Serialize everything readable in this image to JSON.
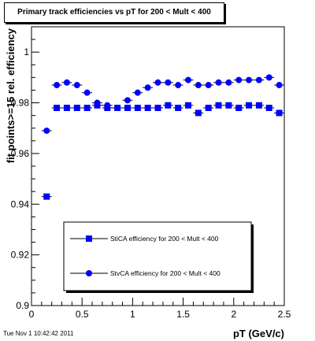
{
  "chart_data": {
    "type": "scatter",
    "title": "Primary track efficiencies vs pT for 200 < Mult < 400",
    "xlabel": "pT (GeV/c)",
    "ylabel": "fit points>=15 rel. efficiency",
    "xlim": [
      0,
      2.5
    ],
    "ylim": [
      0.9,
      1.01
    ],
    "x_ticks": [
      "0",
      "0.5",
      "1",
      "1.5",
      "2",
      "2.5"
    ],
    "y_ticks": [
      "0.9",
      "0.92",
      "0.94",
      "0.96",
      "0.98",
      "1"
    ],
    "legend_position": "bottom-center",
    "series": [
      {
        "name": "StiCA efficiency  for 200 < Mult < 400",
        "marker": "square",
        "color": "#0000ff",
        "x": [
          0.15,
          0.25,
          0.35,
          0.45,
          0.55,
          0.65,
          0.75,
          0.85,
          0.95,
          1.05,
          1.15,
          1.25,
          1.35,
          1.45,
          1.55,
          1.65,
          1.75,
          1.85,
          1.95,
          2.05,
          2.15,
          2.25,
          2.35,
          2.45
        ],
        "y": [
          0.943,
          0.978,
          0.978,
          0.978,
          0.978,
          0.979,
          0.978,
          0.978,
          0.978,
          0.978,
          0.978,
          0.978,
          0.979,
          0.978,
          0.979,
          0.976,
          0.978,
          0.979,
          0.979,
          0.978,
          0.979,
          0.979,
          0.978,
          0.976
        ]
      },
      {
        "name": "StvCA efficiency  for 200 < Mult < 400",
        "marker": "circle",
        "color": "#0000ff",
        "x": [
          0.15,
          0.25,
          0.35,
          0.45,
          0.55,
          0.65,
          0.75,
          0.85,
          0.95,
          1.05,
          1.15,
          1.25,
          1.35,
          1.45,
          1.55,
          1.65,
          1.75,
          1.85,
          1.95,
          2.05,
          2.15,
          2.25,
          2.35,
          2.45
        ],
        "y": [
          0.969,
          0.987,
          0.988,
          0.987,
          0.984,
          0.98,
          0.979,
          0.978,
          0.981,
          0.984,
          0.986,
          0.988,
          0.988,
          0.987,
          0.989,
          0.987,
          0.987,
          0.988,
          0.988,
          0.989,
          0.989,
          0.989,
          0.99,
          0.987
        ]
      }
    ]
  },
  "footer": {
    "timestamp": "Tue Nov  1 10:42:42 2011"
  }
}
